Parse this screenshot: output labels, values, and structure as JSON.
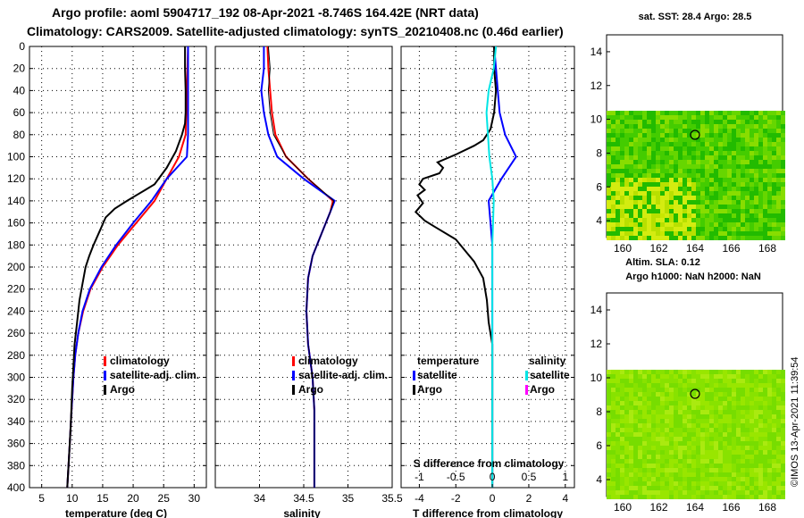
{
  "header": {
    "line1": "Argo profile: aoml 5904717_192 08-Apr-2021 -8.746S 164.42E (NRT data)",
    "line2": "Climatology: CARS2009. Satellite-adjusted climatology: synTS_20210408.nc (0.46d earlier)"
  },
  "colors": {
    "climatology": "#ff0000",
    "satellite": "#0000ff",
    "argo": "#000000",
    "salinity_satellite": "#00e5e5",
    "salinity_argo": "#ff00ff"
  },
  "depth_axis": {
    "ticks": [
      0,
      20,
      40,
      60,
      80,
      100,
      120,
      140,
      160,
      180,
      200,
      220,
      240,
      260,
      280,
      300,
      320,
      340,
      360,
      380,
      400
    ]
  },
  "chart_data": [
    {
      "type": "line",
      "id": "temperature",
      "xlabel": "temperature (deg C)",
      "xlim": [
        3,
        32
      ],
      "ylim": [
        0,
        400
      ],
      "xticks": [
        5,
        10,
        15,
        20,
        25,
        30
      ],
      "xtick_labels": [
        "5",
        "10",
        "15",
        "20",
        "25",
        "30"
      ],
      "legend": [
        "climatology",
        "satellite-adj. clim.",
        "Argo"
      ],
      "series": [
        {
          "name": "climatology",
          "color": "#ff0000",
          "points": [
            [
              29,
              0
            ],
            [
              28.9,
              20
            ],
            [
              28.8,
              40
            ],
            [
              28.7,
              60
            ],
            [
              28.6,
              80
            ],
            [
              27.5,
              100
            ],
            [
              25.5,
              120
            ],
            [
              23.5,
              140
            ],
            [
              20.5,
              160
            ],
            [
              17.5,
              180
            ],
            [
              15,
              200
            ],
            [
              13,
              220
            ],
            [
              11.8,
              240
            ],
            [
              11,
              260
            ],
            [
              10.5,
              280
            ],
            [
              10.2,
              300
            ],
            [
              10,
              320
            ],
            [
              9.8,
              340
            ],
            [
              9.6,
              360
            ],
            [
              9.4,
              380
            ],
            [
              9.2,
              400
            ]
          ]
        },
        {
          "name": "satellite-adj. clim.",
          "color": "#0000ff",
          "points": [
            [
              29,
              0
            ],
            [
              29,
              20
            ],
            [
              29,
              40
            ],
            [
              29,
              60
            ],
            [
              29,
              80
            ],
            [
              28.8,
              100
            ],
            [
              25.5,
              120
            ],
            [
              23,
              140
            ],
            [
              20,
              160
            ],
            [
              17.2,
              180
            ],
            [
              14.8,
              200
            ],
            [
              12.9,
              220
            ],
            [
              11.7,
              240
            ],
            [
              11,
              260
            ],
            [
              10.5,
              280
            ],
            [
              10.2,
              300
            ],
            [
              10,
              320
            ],
            [
              9.8,
              340
            ],
            [
              9.6,
              360
            ],
            [
              9.4,
              380
            ],
            [
              9.2,
              400
            ]
          ]
        },
        {
          "name": "Argo",
          "color": "#000000",
          "points": [
            [
              28.5,
              0
            ],
            [
              28.5,
              20
            ],
            [
              28.6,
              40
            ],
            [
              28.6,
              60
            ],
            [
              28.5,
              70
            ],
            [
              28,
              80
            ],
            [
              27,
              95
            ],
            [
              25.5,
              110
            ],
            [
              23.5,
              125
            ],
            [
              22,
              130
            ],
            [
              20.5,
              135
            ],
            [
              19,
              140
            ],
            [
              17,
              147
            ],
            [
              15.5,
              155
            ],
            [
              14.7,
              165
            ],
            [
              13.5,
              180
            ],
            [
              12.8,
              190
            ],
            [
              12.2,
              200
            ],
            [
              11.7,
              215
            ],
            [
              11.2,
              230
            ],
            [
              10.8,
              250
            ],
            [
              10.4,
              270
            ],
            [
              10.2,
              290
            ],
            [
              10,
              310
            ],
            [
              9.8,
              340
            ],
            [
              9.6,
              360
            ],
            [
              9.4,
              380
            ],
            [
              9.2,
              400
            ]
          ]
        }
      ]
    },
    {
      "type": "line",
      "id": "salinity",
      "xlabel": "salinity",
      "xlim": [
        33.5,
        35.5
      ],
      "ylim": [
        0,
        400
      ],
      "xticks": [
        34,
        34.5,
        35,
        35.5
      ],
      "xtick_labels": [
        "34",
        "34.5",
        "35",
        "35.5"
      ],
      "legend": [
        "climatology",
        "satellite-adj. clim.",
        "Argo"
      ],
      "series": [
        {
          "name": "climatology",
          "color": "#ff0000",
          "points": [
            [
              34.09,
              0
            ],
            [
              34.1,
              20
            ],
            [
              34.12,
              40
            ],
            [
              34.14,
              60
            ],
            [
              34.18,
              80
            ],
            [
              34.3,
              100
            ],
            [
              34.55,
              120
            ],
            [
              34.83,
              140
            ],
            [
              34.8,
              150
            ],
            [
              34.7,
              170
            ],
            [
              34.6,
              190
            ],
            [
              34.55,
              210
            ],
            [
              34.53,
              240
            ],
            [
              34.55,
              270
            ],
            [
              34.6,
              300
            ],
            [
              34.62,
              330
            ],
            [
              34.62,
              360
            ],
            [
              34.62,
              400
            ]
          ]
        },
        {
          "name": "satellite-adj. clim.",
          "color": "#0000ff",
          "points": [
            [
              34.05,
              0
            ],
            [
              34.05,
              20
            ],
            [
              34.02,
              40
            ],
            [
              34.05,
              60
            ],
            [
              34.1,
              80
            ],
            [
              34.2,
              100
            ],
            [
              34.5,
              120
            ],
            [
              34.85,
              140
            ],
            [
              34.8,
              150
            ],
            [
              34.7,
              170
            ],
            [
              34.6,
              190
            ],
            [
              34.55,
              210
            ],
            [
              34.53,
              240
            ],
            [
              34.55,
              270
            ],
            [
              34.6,
              300
            ],
            [
              34.62,
              330
            ],
            [
              34.62,
              360
            ],
            [
              34.62,
              400
            ]
          ]
        }
      ]
    },
    {
      "type": "line",
      "id": "difference",
      "xlabel": "T difference from climatology",
      "xlabel_top": "S difference from climatology",
      "xlim": [
        -5,
        4.5
      ],
      "ylim": [
        0,
        400
      ],
      "xticks": [
        -4,
        -2,
        0,
        2,
        4
      ],
      "xtick_labels": [
        "-4",
        "-2",
        "0",
        "2",
        "4"
      ],
      "top_xticks": [
        -1,
        -0.5,
        0,
        0.5,
        1
      ],
      "top_xtick_labels": [
        "-1",
        "-0.5",
        "0",
        "0.5",
        "1"
      ],
      "legend_temperature": [
        "temperature",
        "satellite",
        "Argo"
      ],
      "legend_salinity": [
        "salinity",
        "satellite",
        "Argo"
      ],
      "series": [
        {
          "name": "T satellite",
          "color": "#0000ff",
          "points": [
            [
              0.1,
              0
            ],
            [
              0.2,
              20
            ],
            [
              0.3,
              40
            ],
            [
              0.4,
              60
            ],
            [
              0.7,
              80
            ],
            [
              1.3,
              100
            ],
            [
              0.5,
              120
            ],
            [
              -0.2,
              140
            ],
            [
              -0.1,
              160
            ],
            [
              0,
              180
            ],
            [
              0,
              200
            ],
            [
              0,
              220
            ],
            [
              0,
              240
            ],
            [
              0,
              260
            ],
            [
              0,
              280
            ],
            [
              0,
              300
            ],
            [
              0,
              320
            ],
            [
              0,
              340
            ],
            [
              0,
              360
            ],
            [
              0,
              380
            ],
            [
              0,
              400
            ]
          ]
        },
        {
          "name": "T Argo",
          "color": "#000000",
          "points": [
            [
              0.1,
              0
            ],
            [
              0.1,
              20
            ],
            [
              0.2,
              40
            ],
            [
              0.1,
              60
            ],
            [
              -0.1,
              75
            ],
            [
              -0.5,
              85
            ],
            [
              -1,
              90
            ],
            [
              -2,
              98
            ],
            [
              -3,
              105
            ],
            [
              -2.7,
              110
            ],
            [
              -2.9,
              115
            ],
            [
              -3.8,
              120
            ],
            [
              -4,
              125
            ],
            [
              -3.7,
              130
            ],
            [
              -4.1,
              135
            ],
            [
              -3.8,
              142
            ],
            [
              -4.2,
              150
            ],
            [
              -3.7,
              158
            ],
            [
              -3,
              165
            ],
            [
              -2,
              175
            ],
            [
              -1.5,
              185
            ],
            [
              -1,
              195
            ],
            [
              -0.5,
              210
            ],
            [
              -0.3,
              230
            ],
            [
              -0.2,
              250
            ],
            [
              0,
              270
            ],
            [
              0,
              290
            ],
            [
              0,
              320
            ],
            [
              0,
              340
            ],
            [
              0,
              360
            ],
            [
              0,
              380
            ],
            [
              0,
              400
            ]
          ]
        },
        {
          "name": "S satellite",
          "color": "#00e5e5",
          "points": [
            [
              0.05,
              0
            ],
            [
              0.02,
              20
            ],
            [
              -0.05,
              40
            ],
            [
              -0.08,
              60
            ],
            [
              -0.06,
              80
            ],
            [
              -0.04,
              100
            ],
            [
              0,
              120
            ],
            [
              0.02,
              140
            ],
            [
              0.01,
              160
            ],
            [
              0,
              180
            ],
            [
              0,
              200
            ],
            [
              0,
              220
            ],
            [
              0,
              240
            ],
            [
              0,
              260
            ],
            [
              0,
              280
            ],
            [
              0,
              300
            ],
            [
              0,
              320
            ],
            [
              0,
              340
            ],
            [
              0,
              360
            ],
            [
              0,
              380
            ],
            [
              0,
              400
            ]
          ]
        }
      ]
    }
  ],
  "maps": {
    "top": {
      "title": "sat. SST: 28.4 Argo: 28.5",
      "yticks": [
        "14",
        "12",
        "10",
        "8",
        "6",
        "4"
      ],
      "xticks": [
        "160",
        "162",
        "164",
        "166",
        "168"
      ]
    },
    "bottom": {
      "caption1": "Altim. SLA: 0.12",
      "caption2": "Argo h1000: NaN h2000: NaN",
      "yticks": [
        "14",
        "12",
        "10",
        "8",
        "6",
        "4"
      ],
      "xticks": [
        "160",
        "162",
        "164",
        "166",
        "168"
      ]
    }
  },
  "watermark": "©IMOS 13-Apr-2021 11:39:54"
}
